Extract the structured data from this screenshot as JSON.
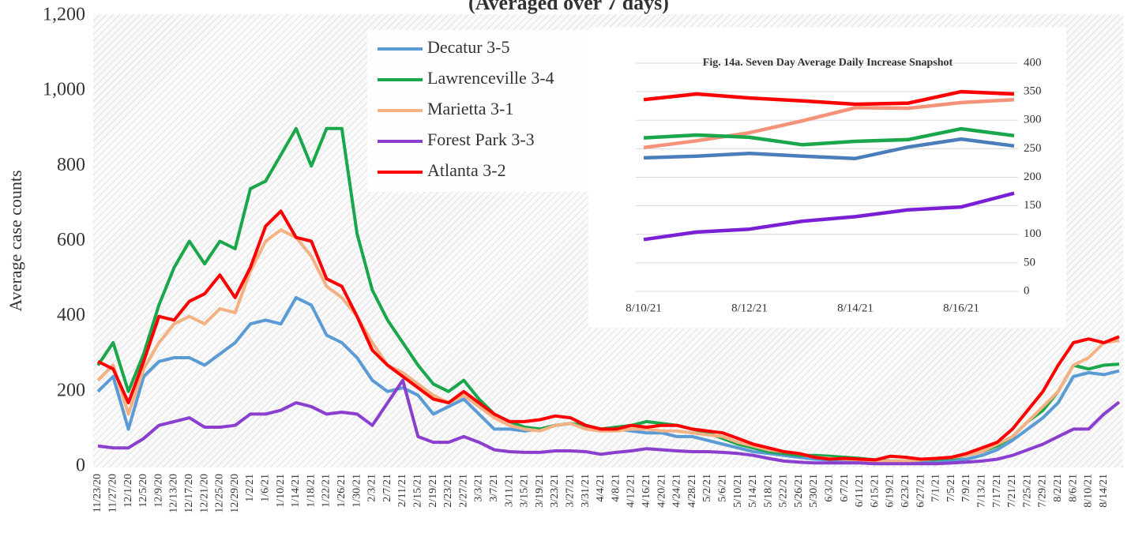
{
  "chart_data": [
    {
      "type": "line",
      "title": "(Averaged over 7 days)",
      "y_label": "Average case counts",
      "categories": [
        "11/23/20",
        "11/27/20",
        "12/1/20",
        "12/5/20",
        "12/9/20",
        "12/13/20",
        "12/17/20",
        "12/21/20",
        "12/25/20",
        "12/29/20",
        "1/2/21",
        "1/6/21",
        "1/10/21",
        "1/14/21",
        "1/18/21",
        "1/22/21",
        "1/26/21",
        "1/30/21",
        "2/3/21",
        "2/7/21",
        "2/11/21",
        "2/15/21",
        "2/19/21",
        "2/23/21",
        "2/27/21",
        "3/3/21",
        "3/7/21",
        "3/11/21",
        "3/15/21",
        "3/19/21",
        "3/23/21",
        "3/27/21",
        "3/31/21",
        "4/4/21",
        "4/8/21",
        "4/12/21",
        "4/16/21",
        "4/20/21",
        "4/24/21",
        "4/28/21",
        "5/2/21",
        "5/6/21",
        "5/10/21",
        "5/14/21",
        "5/18/21",
        "5/22/21",
        "5/26/21",
        "5/30/21",
        "6/3/21",
        "6/7/21",
        "6/11/21",
        "6/15/21",
        "6/19/21",
        "6/23/21",
        "6/27/21",
        "7/1/21",
        "7/5/21",
        "7/9/21",
        "7/13/21",
        "7/17/21",
        "7/21/21",
        "7/25/21",
        "7/29/21",
        "8/2/21",
        "8/6/21",
        "8/10/21",
        "8/14/21",
        null
      ],
      "series": [
        {
          "name": "Decatur 3-5",
          "color": "#5b9bd5",
          "values": [
            200,
            240,
            100,
            240,
            280,
            290,
            290,
            270,
            300,
            330,
            380,
            390,
            380,
            450,
            430,
            350,
            330,
            290,
            230,
            200,
            210,
            190,
            140,
            160,
            180,
            140,
            100,
            100,
            95,
            100,
            110,
            115,
            105,
            95,
            100,
            95,
            90,
            90,
            80,
            80,
            70,
            60,
            50,
            40,
            35,
            30,
            25,
            20,
            18,
            18,
            15,
            12,
            10,
            10,
            10,
            12,
            15,
            20,
            30,
            45,
            70,
            100,
            130,
            170,
            240,
            250,
            245,
            255
          ]
        },
        {
          "name": "Lawrenceville 3-4",
          "color": "#1aa64a",
          "values": [
            270,
            330,
            200,
            300,
            430,
            530,
            600,
            540,
            600,
            580,
            740,
            760,
            830,
            900,
            800,
            900,
            900,
            620,
            470,
            390,
            330,
            270,
            220,
            200,
            230,
            180,
            140,
            120,
            105,
            100,
            110,
            115,
            110,
            100,
            105,
            110,
            120,
            115,
            110,
            100,
            90,
            75,
            60,
            50,
            40,
            35,
            30,
            30,
            28,
            25,
            22,
            18,
            15,
            15,
            18,
            20,
            22,
            30,
            40,
            55,
            80,
            120,
            150,
            200,
            270,
            260,
            270,
            273
          ]
        },
        {
          "name": "Marietta 3-1",
          "color": "#f4b183",
          "values": [
            230,
            270,
            140,
            260,
            330,
            380,
            400,
            380,
            420,
            410,
            520,
            600,
            630,
            610,
            560,
            480,
            450,
            400,
            330,
            270,
            250,
            220,
            190,
            170,
            190,
            160,
            130,
            110,
            100,
            95,
            110,
            115,
            100,
            95,
            95,
            100,
            100,
            95,
            95,
            90,
            85,
            80,
            65,
            55,
            45,
            40,
            35,
            25,
            22,
            20,
            18,
            15,
            15,
            15,
            18,
            22,
            25,
            30,
            40,
            60,
            80,
            120,
            160,
            200,
            270,
            290,
            330,
            336
          ]
        },
        {
          "name": "Forest Park 3-3",
          "color": "#8a3fcf",
          "values": [
            55,
            50,
            50,
            75,
            110,
            120,
            130,
            105,
            105,
            110,
            140,
            140,
            150,
            170,
            160,
            140,
            145,
            140,
            110,
            170,
            230,
            80,
            65,
            65,
            80,
            65,
            45,
            40,
            38,
            38,
            42,
            42,
            40,
            33,
            38,
            42,
            48,
            45,
            42,
            40,
            40,
            38,
            35,
            30,
            22,
            15,
            12,
            10,
            10,
            10,
            10,
            8,
            8,
            8,
            8,
            8,
            10,
            12,
            15,
            20,
            30,
            45,
            60,
            80,
            100,
            100,
            140,
            172
          ]
        },
        {
          "name": "Atlanta 3-2",
          "color": "#ff0000",
          "values": [
            280,
            260,
            170,
            280,
            400,
            390,
            440,
            460,
            510,
            450,
            530,
            640,
            680,
            610,
            600,
            500,
            480,
            400,
            310,
            270,
            240,
            210,
            180,
            170,
            200,
            170,
            140,
            120,
            120,
            125,
            135,
            130,
            110,
            100,
            100,
            110,
            105,
            110,
            110,
            100,
            95,
            90,
            75,
            60,
            50,
            40,
            35,
            25,
            20,
            22,
            20,
            18,
            28,
            25,
            20,
            22,
            25,
            35,
            50,
            65,
            100,
            150,
            200,
            270,
            330,
            340,
            330,
            346
          ]
        }
      ],
      "ylim": [
        0,
        1200
      ],
      "yticks": [
        0,
        200,
        400,
        600,
        800,
        {
          "value": 1000,
          "label": "1,000"
        },
        {
          "value": 1200,
          "label": "1,200"
        }
      ]
    },
    {
      "type": "line",
      "title": "Fig. 14a. Seven Day Average Daily Increase Snapshot",
      "categories": [
        "8/10/21",
        null,
        "8/12/21",
        null,
        "8/14/21",
        null,
        "8/16/21",
        null
      ],
      "series": [
        {
          "name": "Atlanta 3-2",
          "color": "#ff0000",
          "values": [
            336,
            346,
            339,
            334,
            328,
            330,
            350,
            346
          ]
        },
        {
          "name": "Marietta 3-1",
          "color": "#f4937a",
          "values": [
            252,
            264,
            278,
            299,
            322,
            321,
            331,
            336
          ]
        },
        {
          "name": "Lawrenceville 3-4",
          "color": "#1aa64a",
          "values": [
            269,
            274,
            270,
            257,
            263,
            266,
            285,
            273
          ]
        },
        {
          "name": "Decatur 3-5",
          "color": "#4a7ebb",
          "values": [
            234,
            237,
            242,
            237,
            233,
            253,
            267,
            255
          ]
        },
        {
          "name": "Forest Park 3-3",
          "color": "#7a1fd6",
          "values": [
            91,
            104,
            109,
            123,
            131,
            143,
            148,
            172
          ]
        }
      ],
      "ylim": [
        0,
        400
      ],
      "yticks": [
        0,
        50,
        100,
        150,
        200,
        250,
        300,
        350,
        400
      ],
      "grid": true
    }
  ]
}
